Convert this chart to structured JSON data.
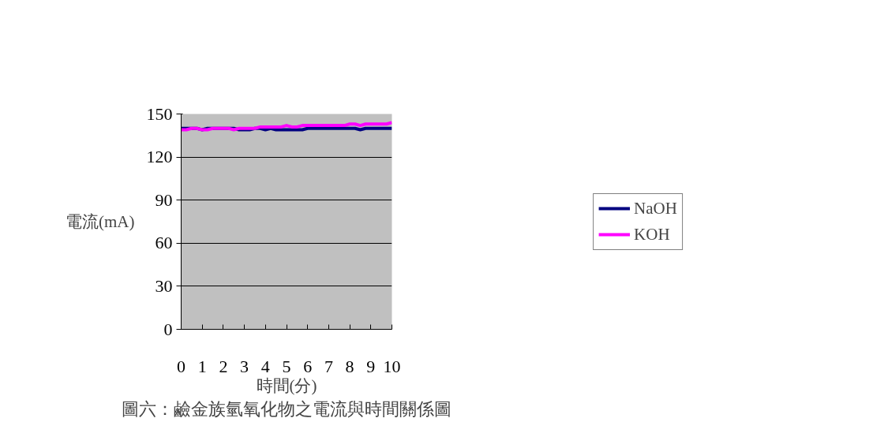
{
  "chart_data": {
    "type": "line",
    "xlabel": "時間(分)",
    "ylabel": "電流(mA)",
    "annotations": [
      "圖六：鹼金族氫氧化物之電流與時間關係圖"
    ],
    "x": [
      0,
      0.25,
      0.5,
      0.75,
      1,
      1.25,
      1.5,
      1.75,
      2,
      2.25,
      2.5,
      2.75,
      3,
      3.25,
      3.5,
      3.75,
      4,
      4.25,
      4.5,
      4.75,
      5,
      5.25,
      5.5,
      5.75,
      6,
      6.25,
      6.5,
      6.75,
      7,
      7.25,
      7.5,
      7.75,
      8,
      8.25,
      8.5,
      8.75,
      9,
      9.25,
      9.5,
      9.75,
      10
    ],
    "series": [
      {
        "name": "NaOH",
        "color": "#000080",
        "values": [
          140,
          140,
          140,
          140,
          139,
          140,
          140,
          140,
          140,
          140,
          140,
          139,
          139,
          139,
          140,
          140,
          139,
          140,
          139,
          139,
          139,
          139,
          139,
          139,
          140,
          140,
          140,
          140,
          140,
          140,
          140,
          140,
          140,
          140,
          139,
          140,
          140,
          140,
          140,
          140,
          140
        ]
      },
      {
        "name": "KOH",
        "color": "#ff00ff",
        "values": [
          139,
          139,
          140,
          140,
          139,
          139,
          140,
          140,
          140,
          140,
          139,
          140,
          140,
          140,
          140,
          141,
          141,
          141,
          141,
          141,
          142,
          141,
          141,
          142,
          142,
          142,
          142,
          142,
          142,
          142,
          142,
          142,
          143,
          143,
          142,
          143,
          143,
          143,
          143,
          143,
          144
        ]
      }
    ],
    "xlim": [
      0,
      10
    ],
    "xticks": [
      0,
      1,
      2,
      3,
      4,
      5,
      6,
      7,
      8,
      9,
      10
    ],
    "ylim": [
      0,
      150
    ],
    "yticks": [
      0,
      30,
      60,
      90,
      120,
      150
    ],
    "grid": "y",
    "legend": "right",
    "marker": "none",
    "line_style": "solid"
  }
}
